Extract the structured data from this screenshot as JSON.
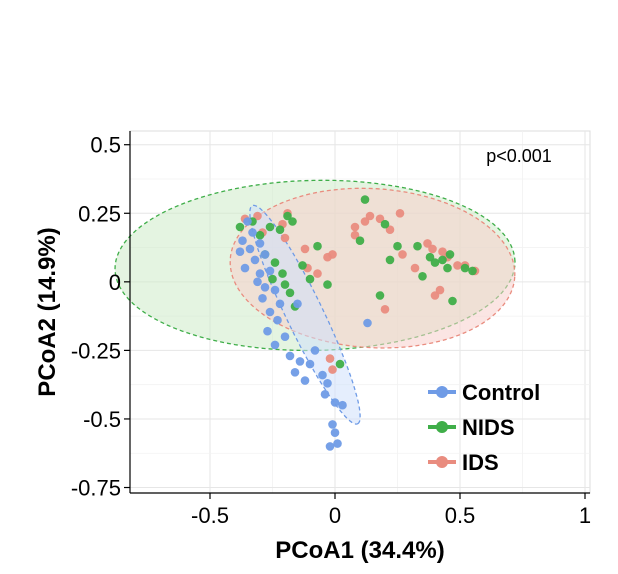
{
  "chart_data": {
    "type": "scatter",
    "title": "",
    "xlabel": "PCoA1 (34.4%)",
    "ylabel": "PCoA2 (14.9%)",
    "xlim": [
      -0.82,
      1.02
    ],
    "ylim": [
      -0.77,
      0.55
    ],
    "x_ticks": [
      -0.5,
      0,
      0.5,
      1
    ],
    "x_tick_labels": [
      "-0.5",
      "0",
      "0.5",
      "1"
    ],
    "y_ticks": [
      0.5,
      0.25,
      0,
      -0.25,
      -0.5,
      -0.75
    ],
    "y_tick_labels": [
      "0.5",
      "0.25",
      "0",
      "-0.25",
      "-0.5",
      "-0.75"
    ],
    "grid": true,
    "legend_position": "bottom-right",
    "annotation": "p<0.001",
    "series": [
      {
        "name": "Control",
        "color": "#6f9be6",
        "ellipse": {
          "cx": -0.12,
          "cy": -0.12,
          "rx": 0.45,
          "ry": 0.072,
          "angle_deg": -62,
          "fill": "#cfe0fb",
          "stroke": "#6f9be6"
        },
        "points": [
          [
            -0.35,
            0.22
          ],
          [
            -0.33,
            0.18
          ],
          [
            -0.37,
            0.15
          ],
          [
            -0.3,
            0.14
          ],
          [
            -0.34,
            0.12
          ],
          [
            -0.38,
            0.11
          ],
          [
            -0.28,
            0.1
          ],
          [
            -0.32,
            0.08
          ],
          [
            -0.36,
            0.05
          ],
          [
            -0.3,
            0.03
          ],
          [
            -0.26,
            0.04
          ],
          [
            -0.31,
            0.0
          ],
          [
            -0.28,
            -0.02
          ],
          [
            -0.24,
            -0.03
          ],
          [
            -0.29,
            -0.06
          ],
          [
            -0.22,
            -0.08
          ],
          [
            -0.26,
            -0.11
          ],
          [
            -0.23,
            -0.14
          ],
          [
            -0.27,
            -0.18
          ],
          [
            -0.2,
            -0.2
          ],
          [
            -0.24,
            -0.23
          ],
          [
            -0.18,
            -0.27
          ],
          [
            -0.14,
            -0.29
          ],
          [
            -0.1,
            -0.3
          ],
          [
            -0.16,
            -0.33
          ],
          [
            -0.12,
            -0.36
          ],
          [
            -0.05,
            -0.34
          ],
          [
            -0.03,
            -0.37
          ],
          [
            -0.04,
            -0.41
          ],
          [
            0.0,
            -0.44
          ],
          [
            0.03,
            -0.45
          ],
          [
            -0.01,
            -0.52
          ],
          [
            0.0,
            -0.55
          ],
          [
            0.01,
            -0.59
          ],
          [
            -0.02,
            -0.6
          ],
          [
            0.13,
            -0.15
          ],
          [
            -0.08,
            -0.25
          ],
          [
            -0.15,
            -0.08
          ]
        ]
      },
      {
        "name": "NIDS",
        "color": "#3fae49",
        "ellipse": {
          "cx": -0.08,
          "cy": 0.06,
          "rx": 0.8,
          "ry": 0.31,
          "angle_deg": 1,
          "fill": "#cdebc9",
          "stroke": "#3fae49"
        },
        "points": [
          [
            -0.38,
            0.2
          ],
          [
            -0.33,
            0.22
          ],
          [
            -0.3,
            0.17
          ],
          [
            -0.26,
            0.2
          ],
          [
            -0.22,
            0.19
          ],
          [
            -0.19,
            0.24
          ],
          [
            -0.17,
            0.22
          ],
          [
            -0.28,
            0.1
          ],
          [
            -0.24,
            0.07
          ],
          [
            -0.21,
            0.03
          ],
          [
            -0.25,
            0.01
          ],
          [
            -0.2,
            -0.01
          ],
          [
            -0.18,
            -0.04
          ],
          [
            -0.13,
            0.06
          ],
          [
            -0.1,
            0.01
          ],
          [
            -0.16,
            -0.09
          ],
          [
            -0.07,
            0.13
          ],
          [
            -0.03,
            -0.01
          ],
          [
            0.1,
            0.15
          ],
          [
            0.12,
            0.3
          ],
          [
            0.2,
            0.21
          ],
          [
            0.25,
            0.13
          ],
          [
            0.22,
            0.08
          ],
          [
            0.18,
            -0.05
          ],
          [
            0.33,
            0.13
          ],
          [
            0.38,
            0.09
          ],
          [
            0.4,
            0.07
          ],
          [
            0.43,
            0.08
          ],
          [
            0.45,
            0.05
          ],
          [
            0.46,
            0.1
          ],
          [
            0.52,
            0.05
          ],
          [
            0.55,
            0.04
          ],
          [
            0.47,
            -0.07
          ],
          [
            0.35,
            0.02
          ],
          [
            0.02,
            -0.3
          ]
        ]
      },
      {
        "name": "IDS",
        "color": "#e98c7f",
        "ellipse": {
          "cx": 0.15,
          "cy": 0.05,
          "rx": 0.57,
          "ry": 0.29,
          "angle_deg": -3,
          "fill": "#f8cfcc",
          "stroke": "#e98c7f"
        },
        "points": [
          [
            -0.36,
            0.23
          ],
          [
            -0.31,
            0.24
          ],
          [
            -0.29,
            0.18
          ],
          [
            -0.21,
            0.21
          ],
          [
            -0.19,
            0.25
          ],
          [
            -0.2,
            0.16
          ],
          [
            -0.12,
            0.12
          ],
          [
            -0.11,
            0.05
          ],
          [
            -0.07,
            0.03
          ],
          [
            -0.03,
            0.09
          ],
          [
            -0.01,
            0.1
          ],
          [
            0.08,
            0.17
          ],
          [
            0.08,
            0.2
          ],
          [
            0.12,
            0.22
          ],
          [
            0.14,
            0.24
          ],
          [
            0.18,
            0.23
          ],
          [
            0.26,
            0.25
          ],
          [
            0.22,
            0.19
          ],
          [
            0.27,
            0.1
          ],
          [
            0.32,
            0.05
          ],
          [
            0.37,
            0.14
          ],
          [
            0.39,
            0.12
          ],
          [
            0.43,
            0.11
          ],
          [
            0.45,
            0.09
          ],
          [
            0.49,
            0.06
          ],
          [
            0.52,
            0.06
          ],
          [
            0.56,
            0.04
          ],
          [
            0.4,
            -0.05
          ],
          [
            0.42,
            -0.03
          ],
          [
            0.2,
            -0.1
          ],
          [
            -0.02,
            -0.28
          ],
          [
            -0.01,
            -0.32
          ]
        ]
      }
    ]
  }
}
